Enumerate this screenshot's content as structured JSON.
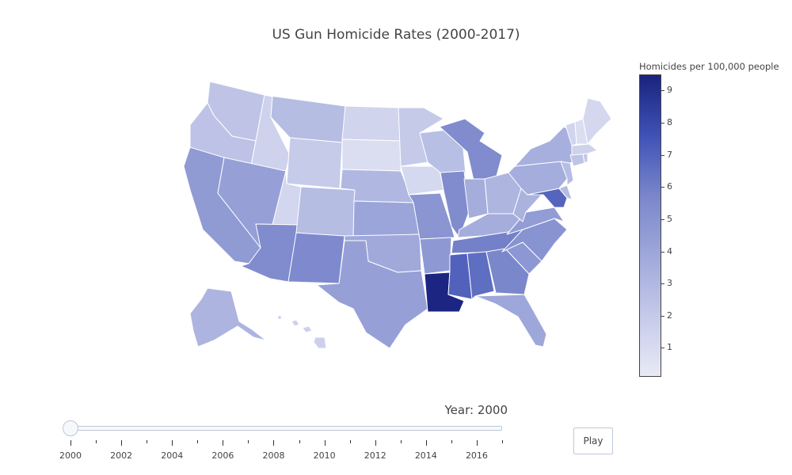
{
  "title": "US Gun Homicide Rates (2000-2017)",
  "colorbar": {
    "title": "Homicides per 100,000 people",
    "ticks": [
      1,
      2,
      3,
      4,
      5,
      6,
      7,
      8,
      9
    ],
    "range": [
      0.1,
      9.5
    ],
    "colorscale": [
      "#e8eaf6",
      "#c5cae9",
      "#9fa8da",
      "#7986cb",
      "#3f51b5",
      "#1a237e"
    ]
  },
  "slider": {
    "label": "Year: 2000",
    "current_year": 2000,
    "range": [
      2000,
      2017
    ],
    "labeled_years": [
      "2000",
      "2002",
      "2004",
      "2006",
      "2008",
      "2010",
      "2012",
      "2014",
      "2016"
    ]
  },
  "play_button": {
    "label": "Play"
  },
  "states": {
    "WA": 2.3,
    "OR": 2.4,
    "CA": 4.6,
    "ID": 1.5,
    "NV": 4.3,
    "MT": 2.7,
    "WY": 1.9,
    "UT": 1.3,
    "AZ": 5.4,
    "CO": 2.7,
    "NM": 5.5,
    "ND": 1.4,
    "SD": 0.8,
    "NE": 3.0,
    "KS": 4.0,
    "OK": 3.8,
    "TX": 4.3,
    "MN": 2.0,
    "IA": 1.1,
    "MO": 4.9,
    "AR": 4.7,
    "LA": 9.4,
    "WI": 2.6,
    "IL": 5.4,
    "MI": 5.4,
    "IN": 3.6,
    "OH": 3.1,
    "KY": 3.6,
    "TN": 5.9,
    "MS": 7.0,
    "AL": 6.6,
    "GA": 5.7,
    "FL": 3.9,
    "SC": 4.8,
    "NC": 5.0,
    "VA": 4.5,
    "WV": 3.3,
    "PA": 3.6,
    "NY": 3.5,
    "NJ": 2.7,
    "DE": 2.8,
    "MD": 6.9,
    "CT": 2.3,
    "RI": 2.1,
    "MA": 1.5,
    "VT": 1.4,
    "NH": 0.8,
    "ME": 1.2,
    "AK": 3.2,
    "HI": 1.6
  }
}
